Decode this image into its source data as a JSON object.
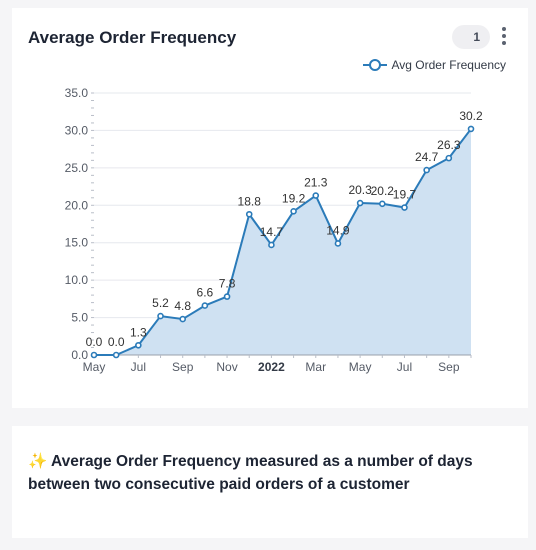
{
  "chart_card": {
    "title": "Average Order Frequency",
    "count_badge": "1",
    "menu_icon": "more-vertical-icon"
  },
  "note_card": {
    "icon": "sparkles-icon",
    "icon_glyph": "✨",
    "text": "Average Order Frequency measured as a number of days between two consecutive paid orders of a customer"
  },
  "colors": {
    "line": "#2b7bb9",
    "area": "#cfe1f2",
    "grid": "#e6e8ee",
    "axis_text": "#555b66",
    "data_label": "#333333"
  },
  "chart_data": {
    "type": "area",
    "title": "",
    "xlabel": "",
    "ylabel": "",
    "ylim": [
      0,
      35
    ],
    "yticks": [
      "0.0",
      "5.0",
      "10.0",
      "15.0",
      "20.0",
      "25.0",
      "30.0",
      "35.0"
    ],
    "x_tick_labels": [
      {
        "label": "May",
        "index": 0,
        "bold": false
      },
      {
        "label": "Jul",
        "index": 2,
        "bold": false
      },
      {
        "label": "Sep",
        "index": 4,
        "bold": false
      },
      {
        "label": "Nov",
        "index": 6,
        "bold": false
      },
      {
        "label": "2022",
        "index": 8,
        "bold": true
      },
      {
        "label": "Mar",
        "index": 10,
        "bold": false
      },
      {
        "label": "May",
        "index": 12,
        "bold": false
      },
      {
        "label": "Jul",
        "index": 14,
        "bold": false
      },
      {
        "label": "Sep",
        "index": 16,
        "bold": false
      }
    ],
    "x": [
      "2021-05",
      "2021-06",
      "2021-07",
      "2021-08",
      "2021-09",
      "2021-10",
      "2021-11",
      "2021-12",
      "2022-01",
      "2022-02",
      "2022-03",
      "2022-04",
      "2022-05",
      "2022-06",
      "2022-07",
      "2022-08",
      "2022-09",
      "2022-10"
    ],
    "series": [
      {
        "name": "Avg Order Frequency",
        "values": [
          0.0,
          0.0,
          1.3,
          5.2,
          4.8,
          6.6,
          7.8,
          18.8,
          14.7,
          19.2,
          21.3,
          14.9,
          20.3,
          20.2,
          19.7,
          24.7,
          26.3,
          30.2
        ],
        "labels": [
          "0.0",
          "0.0",
          "1.3",
          "5.2",
          "4.8",
          "6.6",
          "7.8",
          "18.8",
          "14.7",
          "19.2",
          "21.3",
          "14.9",
          "20.3",
          "20.2",
          "19.7",
          "24.7",
          "26.3",
          "30.2"
        ]
      }
    ],
    "grid": true,
    "legend_position": "top-right"
  }
}
